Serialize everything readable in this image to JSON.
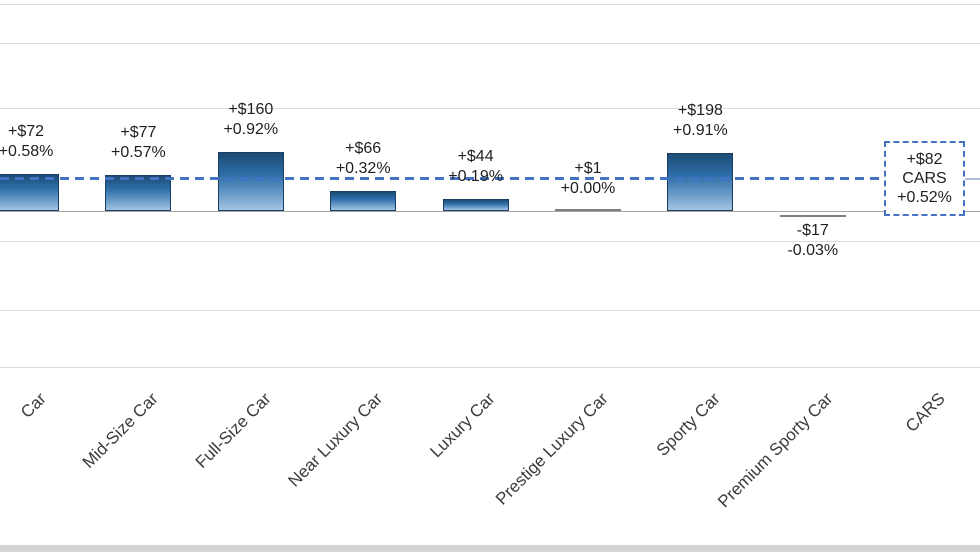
{
  "chart_data": {
    "type": "bar",
    "title": "",
    "xlabel": "",
    "ylabel": "",
    "value_encoding": "percent_change",
    "legend": "none",
    "grid": "horizontal",
    "average_line": {
      "dollar": "+$82",
      "pct_label": "+0.52%",
      "pct": 0.52,
      "style": "dashed",
      "color": "#4472c4"
    },
    "categories": [
      "Car",
      "Mid-Size Car",
      "Full-Size Car",
      "Near Luxury Car",
      "Luxury Car",
      "Prestige Luxury Car",
      "Sporty Car",
      "Premium Sporty Car",
      "CARS"
    ],
    "items": [
      {
        "category": "Car",
        "dollar": "+$72",
        "pct_label": "+0.58%",
        "pct": 0.58
      },
      {
        "category": "Mid-Size Car",
        "dollar": "+$77",
        "pct_label": "+0.57%",
        "pct": 0.57
      },
      {
        "category": "Full-Size Car",
        "dollar": "+$160",
        "pct_label": "+0.92%",
        "pct": 0.92
      },
      {
        "category": "Near Luxury Car",
        "dollar": "+$66",
        "pct_label": "+0.32%",
        "pct": 0.32
      },
      {
        "category": "Luxury Car",
        "dollar": "+$44",
        "pct_label": "+0.19%",
        "pct": 0.19
      },
      {
        "category": "Prestige Luxury Car",
        "dollar": "+$1",
        "pct_label": "+0.00%",
        "pct": 0.0
      },
      {
        "category": "Sporty Car",
        "dollar": "+$198",
        "pct_label": "+0.91%",
        "pct": 0.91
      },
      {
        "category": "Premium Sporty Car",
        "dollar": "-$17",
        "pct_label": "-0.03%",
        "pct": -0.03
      },
      {
        "category": "CARS",
        "dollar": "+$82",
        "pct_label": "+0.52%",
        "pct": 0.52,
        "summary": true
      }
    ],
    "colors": {
      "bar_top": "#1c4b74",
      "bar_bottom": "#a3c4e3",
      "average_line": "#4472c4",
      "gridline": "#dcdcdc",
      "zero_line": "#a6a6a6",
      "label_text": "#1f1f1f"
    }
  }
}
